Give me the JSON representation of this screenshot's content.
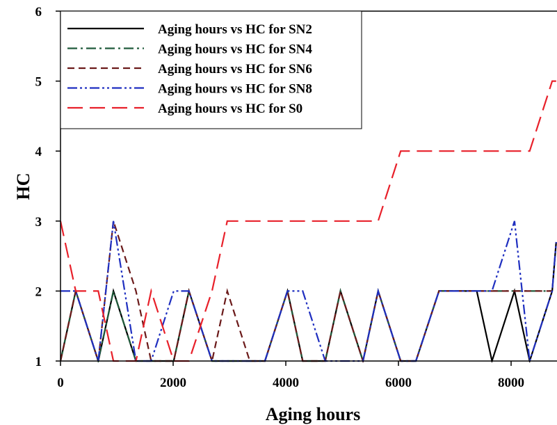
{
  "chart_data": {
    "type": "line",
    "xlabel": "Aging hours",
    "ylabel": "HC",
    "xlim": [
      0,
      8800
    ],
    "ylim": [
      1,
      6
    ],
    "xticks": [
      0,
      2000,
      4000,
      6000,
      8000
    ],
    "yticks": [
      1,
      2,
      3,
      4,
      5,
      6
    ],
    "xtick_labels": [
      "0",
      "2000",
      "4000",
      "6000",
      "8000"
    ],
    "ytick_labels": [
      "1",
      "2",
      "3",
      "4",
      "5",
      "6"
    ],
    "grid": false,
    "legend_position": "top-left",
    "series": [
      {
        "name": "Aging hours vs HC for SN2",
        "color": "#000000",
        "dash": "solid",
        "x": [
          0,
          270,
          670,
          940,
          1340,
          1610,
          2010,
          2280,
          2690,
          2960,
          3360,
          3630,
          4030,
          4300,
          4700,
          4970,
          5370,
          5640,
          6040,
          6310,
          6720,
          7390,
          7660,
          8060,
          8330,
          8730,
          8800
        ],
        "y": [
          1,
          2,
          1,
          2,
          1,
          1,
          1,
          2,
          1,
          1,
          1,
          1,
          2,
          1,
          1,
          2,
          1,
          2,
          1,
          1,
          2,
          2,
          1,
          2,
          1,
          2,
          2.7
        ]
      },
      {
        "name": "Aging hours vs HC for SN4",
        "color": "#1f5a3a",
        "dash": "dashdot",
        "x": [
          0,
          270,
          670,
          940,
          1340,
          1610,
          2010,
          2280,
          2690,
          2960,
          3360,
          3630,
          4030,
          4300,
          4700,
          4970,
          5370,
          5640,
          6040,
          6310,
          6720,
          8730
        ],
        "y": [
          1,
          2,
          1,
          2,
          1,
          1,
          1,
          2,
          1,
          1,
          1,
          1,
          2,
          1,
          1,
          2,
          1,
          2,
          1,
          1,
          2,
          2
        ]
      },
      {
        "name": "Aging hours vs HC for SN6",
        "color": "#6b1a1a",
        "dash": "dashed",
        "x": [
          0,
          270,
          670,
          940,
          1340,
          1610,
          2010,
          2280,
          2690,
          2960,
          3360,
          3630,
          4030,
          4300,
          4700,
          4970,
          5370,
          5640,
          6040,
          6310,
          6720,
          8730
        ],
        "y": [
          1,
          2,
          1,
          3,
          2,
          1,
          1,
          2,
          1,
          2,
          1,
          1,
          2,
          1,
          1,
          2,
          1,
          2,
          1,
          1,
          2,
          2
        ]
      },
      {
        "name": "Aging hours vs HC for SN8",
        "color": "#1f2fc0",
        "dash": "dashdotdot",
        "x": [
          0,
          270,
          670,
          940,
          1340,
          1610,
          2010,
          2280,
          2690,
          2960,
          3360,
          3630,
          4030,
          4300,
          4700,
          4970,
          5370,
          5640,
          6040,
          6310,
          6720,
          7660,
          8060,
          8330,
          8730,
          8800
        ],
        "y": [
          2,
          2,
          1,
          3,
          1,
          1,
          2,
          2,
          1,
          1,
          1,
          1,
          2,
          2,
          1,
          1,
          1,
          2,
          1,
          1,
          2,
          2,
          3,
          1,
          2,
          2.7
        ]
      },
      {
        "name": "Aging hours vs HC for S0",
        "color": "#e8202a",
        "dash": "longdash",
        "x": [
          0,
          270,
          670,
          940,
          1340,
          1610,
          2010,
          2280,
          2690,
          2960,
          5640,
          6040,
          8330,
          8730,
          8800
        ],
        "y": [
          3,
          2,
          2,
          1,
          1,
          2,
          1,
          1,
          2,
          3,
          3,
          4,
          4,
          5,
          5
        ]
      }
    ]
  }
}
